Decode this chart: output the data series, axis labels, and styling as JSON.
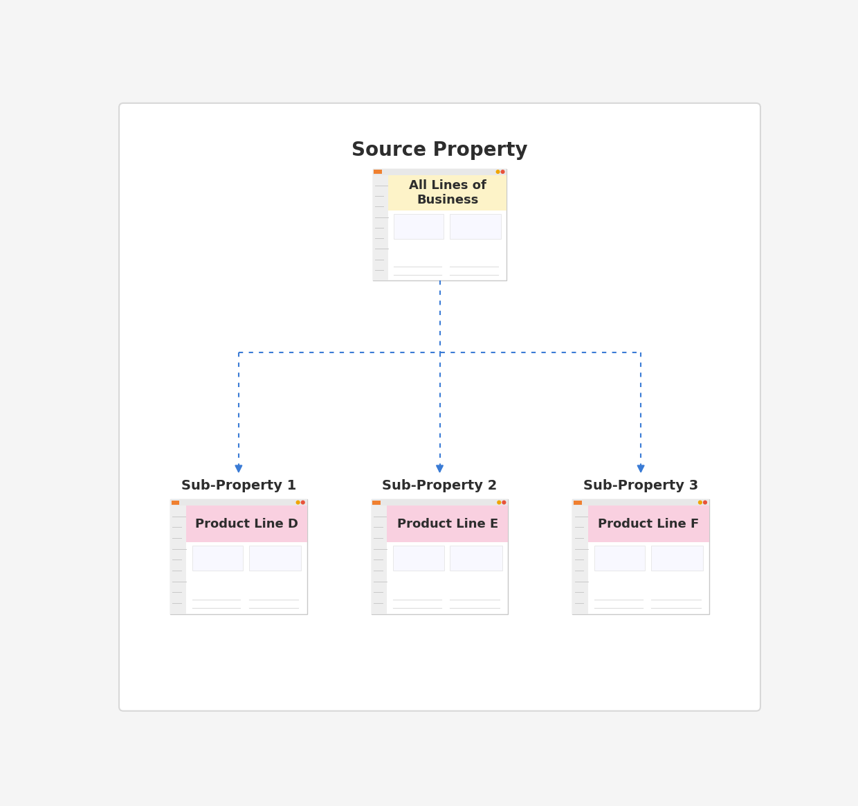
{
  "background_color": "#f5f5f5",
  "border_color": "#d8d8d8",
  "title": "Source Property",
  "title_fontsize": 20,
  "title_fontweight": "bold",
  "title_color": "#2d2d2d",
  "source_label": "All Lines of\nBusiness",
  "source_label_bg": "#fdf3c8",
  "source_label_fontsize": 13,
  "source_label_fontweight": "bold",
  "source_label_color": "#2d2d2d",
  "sub_labels": [
    "Sub-Property 1",
    "Sub-Property 2",
    "Sub-Property 3"
  ],
  "sub_fontsize": 14,
  "sub_fontweight": "bold",
  "sub_color": "#2d2d2d",
  "product_labels": [
    "Product Line D",
    "Product Line E",
    "Product Line F"
  ],
  "product_label_bg": "#f9d0e0",
  "product_label_fontsize": 13,
  "product_label_fontweight": "bold",
  "product_label_color": "#2d2d2d",
  "arrow_color": "#3a7bd5",
  "screenshot_border": "#c8c8c8",
  "topbar_color": "#e8e8e8",
  "sidebar_color": "#eeeeee",
  "dot_red": "#e8523a",
  "dot_orange": "#f0a500",
  "content_line_color": "#dddddd",
  "small_line_color": "#c8c8c8"
}
